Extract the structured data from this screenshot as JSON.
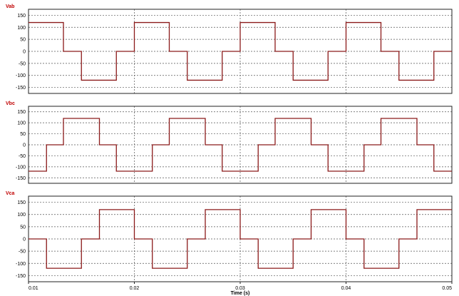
{
  "chart_data": [
    {
      "type": "line",
      "title": "Vab",
      "title_color": "#c00000",
      "series_color": "#8b1a1a",
      "ylim": [
        -175,
        175
      ],
      "yticks": [
        150,
        100,
        50,
        0,
        -50,
        -100,
        -150
      ],
      "grid": true,
      "x": [
        0.01,
        0.0133,
        0.0133,
        0.015,
        0.015,
        0.0183,
        0.0183,
        0.02,
        0.02,
        0.0233,
        0.0233,
        0.025,
        0.025,
        0.0283,
        0.0283,
        0.03,
        0.03,
        0.0333,
        0.0333,
        0.035,
        0.035,
        0.0383,
        0.0383,
        0.04,
        0.04,
        0.0433,
        0.0433,
        0.045,
        0.045,
        0.0483,
        0.0483,
        0.05
      ],
      "y": [
        120,
        120,
        0,
        0,
        -120,
        -120,
        0,
        0,
        120,
        120,
        0,
        0,
        -120,
        -120,
        0,
        0,
        120,
        120,
        0,
        0,
        -120,
        -120,
        0,
        0,
        120,
        120,
        0,
        0,
        -120,
        -120,
        0,
        0
      ]
    },
    {
      "type": "line",
      "title": "Vbc",
      "title_color": "#c00000",
      "series_color": "#8b1a1a",
      "ylim": [
        -175,
        175
      ],
      "yticks": [
        150,
        100,
        50,
        0,
        -50,
        -100,
        -150
      ],
      "grid": true,
      "x": [
        0.01,
        0.0117,
        0.0117,
        0.0133,
        0.0133,
        0.0167,
        0.0167,
        0.0183,
        0.0183,
        0.0217,
        0.0217,
        0.0233,
        0.0233,
        0.0267,
        0.0267,
        0.0283,
        0.0283,
        0.0317,
        0.0317,
        0.0333,
        0.0333,
        0.0367,
        0.0367,
        0.0383,
        0.0383,
        0.0417,
        0.0417,
        0.0433,
        0.0433,
        0.0467,
        0.0467,
        0.0483,
        0.0483,
        0.05
      ],
      "y": [
        -120,
        -120,
        0,
        0,
        120,
        120,
        0,
        0,
        -120,
        -120,
        0,
        0,
        120,
        120,
        0,
        0,
        -120,
        -120,
        0,
        0,
        120,
        120,
        0,
        0,
        -120,
        -120,
        0,
        0,
        120,
        120,
        0,
        0,
        -120,
        -120
      ]
    },
    {
      "type": "line",
      "title": "Vca",
      "title_color": "#c00000",
      "series_color": "#8b1a1a",
      "ylim": [
        -175,
        175
      ],
      "yticks": [
        150,
        100,
        50,
        0,
        -50,
        -100,
        -150
      ],
      "grid": true,
      "xticks": [
        0.01,
        0.02,
        0.03,
        0.04,
        0.05
      ],
      "xtick_labels": [
        "0.01",
        "0.02",
        "0.03",
        "0.04",
        "0.05"
      ],
      "xlabel": "Time (s)",
      "x": [
        0.01,
        0.0117,
        0.0117,
        0.015,
        0.015,
        0.0167,
        0.0167,
        0.02,
        0.02,
        0.0217,
        0.0217,
        0.025,
        0.025,
        0.0267,
        0.0267,
        0.03,
        0.03,
        0.0317,
        0.0317,
        0.035,
        0.035,
        0.0367,
        0.0367,
        0.04,
        0.04,
        0.0417,
        0.0417,
        0.045,
        0.045,
        0.0467,
        0.0467,
        0.05
      ],
      "y": [
        0,
        0,
        -120,
        -120,
        0,
        0,
        120,
        120,
        0,
        0,
        -120,
        -120,
        0,
        0,
        120,
        120,
        0,
        0,
        -120,
        -120,
        0,
        0,
        120,
        120,
        0,
        0,
        -120,
        -120,
        0,
        0,
        120,
        120
      ]
    }
  ],
  "x_axis": {
    "xlim": [
      0.01,
      0.05
    ],
    "xticks": [
      0.01,
      0.02,
      0.03,
      0.04,
      0.05
    ],
    "xtick_labels": [
      "0.01",
      "0.02",
      "0.03",
      "0.04",
      "0.05"
    ],
    "xlabel": "Time (s)"
  }
}
